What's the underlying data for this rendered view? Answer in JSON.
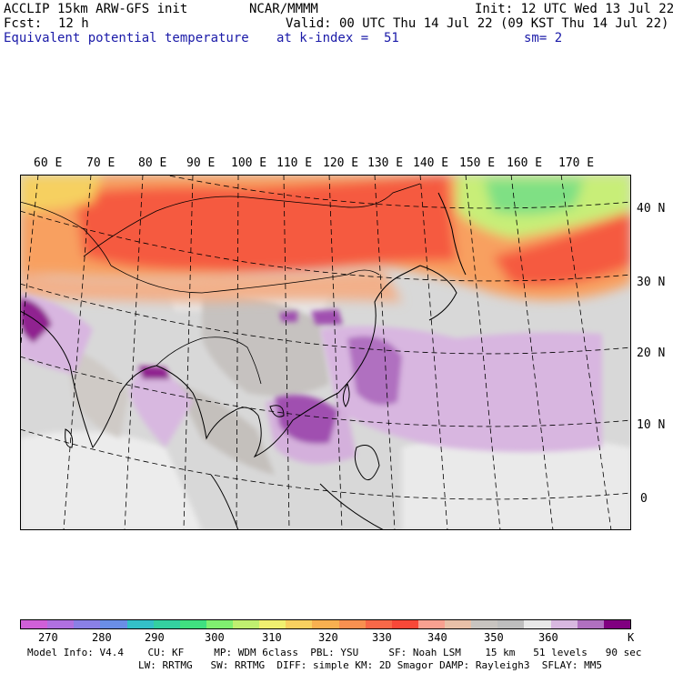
{
  "header": {
    "model": "ACCLIP 15km ARW-GFS init",
    "org": "NCAR/MMMM",
    "init": "Init: 12 UTC Wed 13 Jul 22",
    "fcst_label": "Fcst:",
    "fcst_value": "12 h",
    "valid": "Valid: 00 UTC Thu 14 Jul 22 (09 KST Thu 14 Jul 22)",
    "field": "Equivalent potential temperature",
    "level": "at k-index =  51",
    "smooth": "sm= 2"
  },
  "map": {
    "lon_labels": [
      "60 E",
      "70 E",
      "80 E",
      "90 E",
      "100 E",
      "110 E",
      "120 E",
      "130 E",
      "140 E",
      "150 E",
      "160 E",
      "170 E"
    ],
    "lat_labels": [
      "40 N",
      "30 N",
      "20 N",
      "10 N",
      "0"
    ]
  },
  "colorbar": {
    "colors": [
      "#d060d8",
      "#b070e0",
      "#8a80e6",
      "#6a8ee6",
      "#34c0c8",
      "#34d0a0",
      "#40e080",
      "#80f070",
      "#c0f070",
      "#f0f070",
      "#f8d060",
      "#f8b050",
      "#f89050",
      "#f86848",
      "#f84838",
      "#f8a090",
      "#e8c0a8",
      "#c8c4c0",
      "#bebebe",
      "#e8e8e8",
      "#d8b8e0",
      "#b070c0",
      "#800080"
    ],
    "tick_labels": [
      "270",
      "280",
      "290",
      "300",
      "310",
      "320",
      "330",
      "340",
      "350",
      "360",
      "K"
    ]
  },
  "footer": {
    "line1": "Model Info: V4.4    CU: KF     MP: WDM 6class  PBL: YSU     SF: Noah LSM    15 km   51 levels   90 sec",
    "line2": "LW: RRTMG   SW: RRTMG  DIFF: simple KM: 2D Smagor DAMP: Rayleigh3  SFLAY: MM5"
  }
}
